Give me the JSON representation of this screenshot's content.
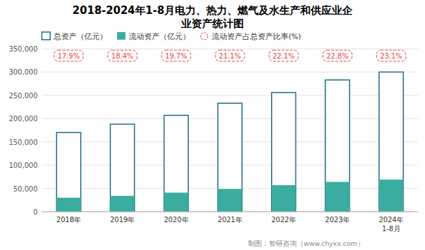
{
  "chart_data": {
    "type": "bar",
    "title": "2018-2024年1-8月电力、热力、燃气及水生产和供应业企\n业资产统计图",
    "categories": [
      "2018年",
      "2019年",
      "2020年",
      "2021年",
      "2022年",
      "2023年",
      "2024年\n1-8月"
    ],
    "series": [
      {
        "name": "总资产（亿元）",
        "color": "#1a6b8a",
        "values": [
          170000,
          188000,
          207000,
          233000,
          256000,
          283000,
          300000
        ]
      },
      {
        "name": "流动资产（亿元）",
        "color": "#3aada0",
        "values": [
          30000,
          34000,
          41000,
          49000,
          57000,
          64000,
          69000
        ]
      },
      {
        "name": "流动资产占总资产比率(%)",
        "type": "label",
        "color": "#e84040",
        "values": [
          17.9,
          18.4,
          19.7,
          21.1,
          22.1,
          22.8,
          23.1
        ],
        "value_labels": [
          "17.9%",
          "18.4%",
          "19.7%",
          "21.1%",
          "22.1%",
          "22.8%",
          "23.1%"
        ]
      }
    ],
    "ylim": [
      0,
      350000
    ],
    "yticks": [
      0,
      {
        "value": 50000,
        "label": "50,000"
      },
      {
        "value": 100000,
        "label": "100,000"
      },
      {
        "value": 150000,
        "label": "150,000"
      },
      {
        "value": 200000,
        "label": "200,000"
      },
      {
        "value": 250000,
        "label": "250,000"
      },
      {
        "value": 300000,
        "label": "300,000"
      },
      {
        "value": 350000,
        "label": "350,000"
      }
    ],
    "grid": true,
    "legend": "top",
    "annotations": [
      "制图：智研咨询（www.chyxx.com）"
    ]
  }
}
